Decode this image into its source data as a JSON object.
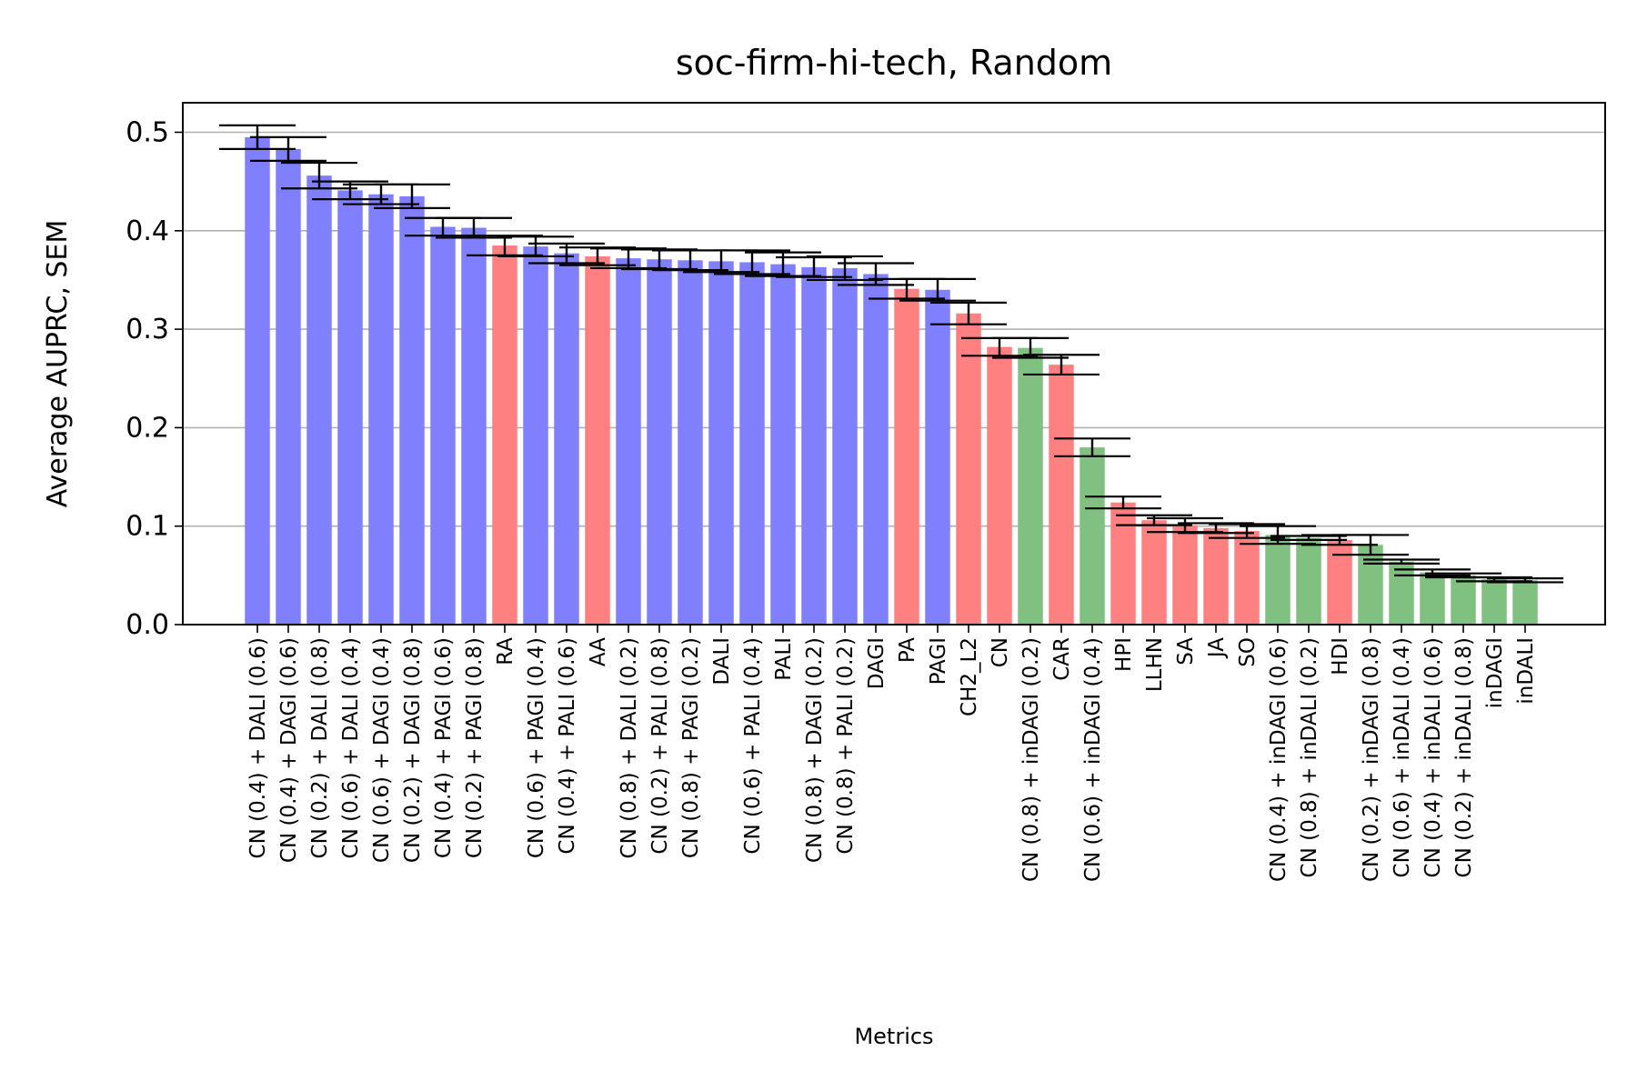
{
  "chart_data": {
    "type": "bar",
    "title": "soc-firm-hi-tech, Random",
    "xlabel": "Metrics",
    "ylabel": "Average AUPRC, SEM",
    "ylim": [
      0,
      0.53
    ],
    "yticks": [
      0.0,
      0.1,
      0.2,
      0.3,
      0.4,
      0.5
    ],
    "ytick_labels": [
      "0.0",
      "0.1",
      "0.2",
      "0.3",
      "0.4",
      "0.5"
    ],
    "grid": "horizontal",
    "colors": {
      "blue": "#8080ff",
      "red": "#ff8080",
      "green": "#80c080",
      "errorbar": "#000000",
      "grid": "#b0b0b0"
    },
    "categories": [
      "CN (0.4) + DALI (0.6)",
      "CN (0.4) + DAGI (0.6)",
      "CN (0.2) + DALI (0.8)",
      "CN (0.6) + DALI (0.4)",
      "CN (0.6) + DAGI (0.4)",
      "CN (0.2) + DAGI (0.8)",
      "CN (0.4) + PAGI (0.6)",
      "CN (0.2) + PAGI (0.8)",
      "RA",
      "CN (0.6) + PAGI (0.4)",
      "CN (0.4) + PALI (0.6)",
      "AA",
      "CN (0.8) + DALI (0.2)",
      "CN (0.2) + PALI (0.8)",
      "CN (0.8) + PAGI (0.2)",
      "DALI",
      "CN (0.6) + PALI (0.4)",
      "PALI",
      "CN (0.8) + DAGI (0.2)",
      "CN (0.8) + PALI (0.2)",
      "DAGI",
      "PA",
      "PAGI",
      "CH2_L2",
      "CN",
      "CN (0.8) + inDAGI (0.2)",
      "CAR",
      "CN (0.6) + inDAGI (0.4)",
      "HPI",
      "LLHN",
      "SA",
      "JA",
      "SO",
      "CN (0.4) + inDAGI (0.6)",
      "CN (0.8) + inDALI (0.2)",
      "HDI",
      "CN (0.2) + inDAGI (0.8)",
      "CN (0.6) + inDALI (0.4)",
      "CN (0.4) + inDALI (0.6)",
      "CN (0.2) + inDALI (0.8)",
      "inDAGI",
      "inDALI"
    ],
    "values": [
      0.495,
      0.483,
      0.456,
      0.441,
      0.437,
      0.435,
      0.404,
      0.403,
      0.385,
      0.384,
      0.377,
      0.374,
      0.372,
      0.371,
      0.37,
      0.369,
      0.368,
      0.366,
      0.363,
      0.362,
      0.356,
      0.341,
      0.34,
      0.316,
      0.282,
      0.281,
      0.264,
      0.18,
      0.124,
      0.106,
      0.101,
      0.098,
      0.095,
      0.091,
      0.088,
      0.086,
      0.081,
      0.064,
      0.053,
      0.05,
      0.046,
      0.045
    ],
    "errors": [
      0.012,
      0.012,
      0.013,
      0.009,
      0.01,
      0.012,
      0.009,
      0.01,
      0.01,
      0.01,
      0.01,
      0.009,
      0.01,
      0.01,
      0.01,
      0.011,
      0.012,
      0.012,
      0.01,
      0.012,
      0.011,
      0.01,
      0.011,
      0.011,
      0.009,
      0.01,
      0.01,
      0.009,
      0.006,
      0.005,
      0.007,
      0.005,
      0.007,
      0.009,
      0.002,
      0.005,
      0.01,
      0.002,
      0.003,
      0.002,
      0.002,
      0.002
    ],
    "bar_colors": [
      "blue",
      "blue",
      "blue",
      "blue",
      "blue",
      "blue",
      "blue",
      "blue",
      "red",
      "blue",
      "blue",
      "red",
      "blue",
      "blue",
      "blue",
      "blue",
      "blue",
      "blue",
      "blue",
      "blue",
      "blue",
      "red",
      "blue",
      "red",
      "red",
      "green",
      "red",
      "green",
      "red",
      "red",
      "red",
      "red",
      "red",
      "green",
      "green",
      "red",
      "green",
      "green",
      "green",
      "green",
      "green",
      "green"
    ]
  }
}
